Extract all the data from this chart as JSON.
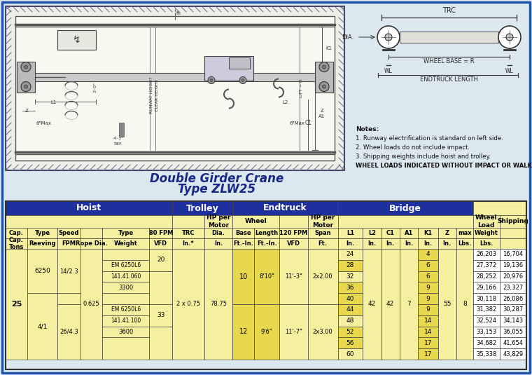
{
  "title_line1": "Double Girder Crane",
  "title_line2": "Type ZLW25",
  "bg_color": "#dce8f0",
  "border_color": "#2255aa",
  "hdr_blue": "#1e2f9e",
  "hdr_yellow": "#e8d84d",
  "cell_yellow": "#f5f0a0",
  "cell_highlight": "#e8d84d",
  "cell_white": "#ffffff",
  "notes": [
    "Notes:",
    "1. Runway electrification is standard on left side.",
    "2. Wheel loads do not include impact.",
    "3. Shipping weights include hoist and trolley."
  ],
  "wheel_loads_note": "WHEEL LOADS INDICATED WITHOUT IMPACT OR WALKWAY",
  "spans": [
    24,
    28,
    32,
    36,
    40,
    44,
    48,
    52,
    56,
    60
  ],
  "A1_vals": [
    "4",
    "6",
    "6",
    "9",
    "9",
    "9",
    "14",
    "14",
    "17",
    "17"
  ],
  "wl_vals": [
    26203,
    27372,
    28252,
    29166,
    30118,
    31382,
    32524,
    33153,
    34682,
    35338
  ],
  "sw_vals": [
    16704,
    19136,
    20976,
    23327,
    26086,
    30287,
    34143,
    36055,
    41654,
    43829
  ]
}
